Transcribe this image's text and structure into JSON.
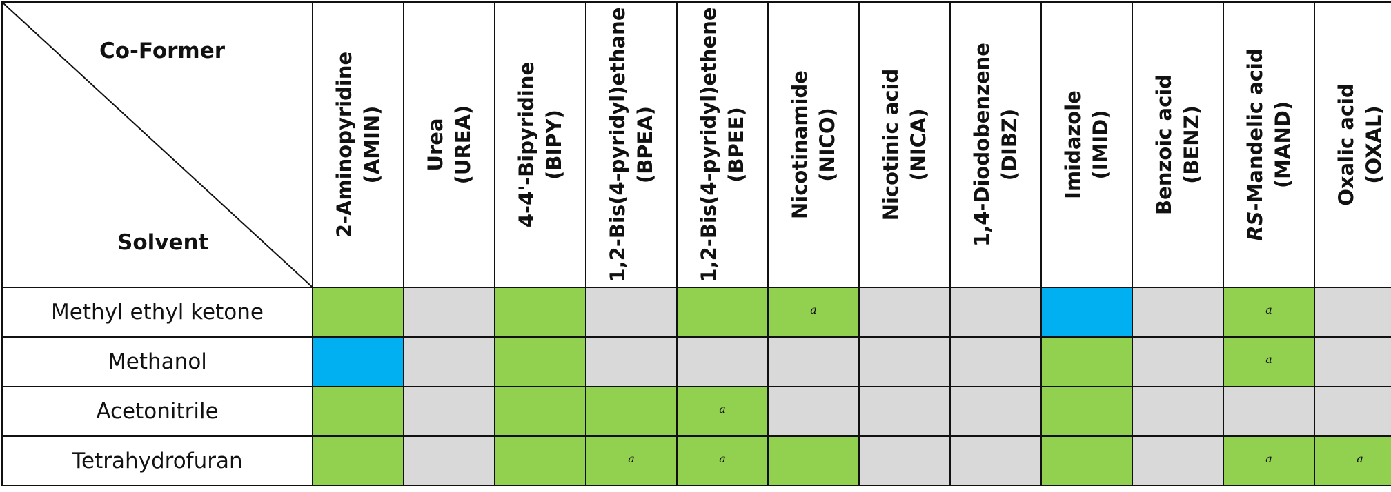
{
  "header": {
    "corner_top": "Co-Former",
    "corner_bottom": "Solvent"
  },
  "columns": [
    {
      "name": "2-Aminopyridine",
      "abbr": "(AMIN)"
    },
    {
      "name": "Urea",
      "abbr": "(UREA)"
    },
    {
      "name": "4-4'-Bipyridine",
      "abbr": "(BIPY)"
    },
    {
      "name": "1,2-Bis(4-pyridyl)ethane",
      "abbr": "(BPEA)"
    },
    {
      "name": "1,2-Bis(4-pyridyl)ethene",
      "abbr": "(BPEE)"
    },
    {
      "name": "Nicotinamide",
      "abbr": "(NICO)"
    },
    {
      "name": "Nicotinic acid",
      "abbr": "(NICA)"
    },
    {
      "name": "1,4-Diodobenzene",
      "abbr": "(DIBZ)"
    },
    {
      "name": "Imidazole",
      "abbr": "(IMID)"
    },
    {
      "name": "Benzoic acid",
      "abbr": "(BENZ)"
    },
    {
      "name_italic": "RS",
      "name": "-Mandelic acid",
      "abbr": "(MAND)"
    },
    {
      "name": "Oxalic acid",
      "abbr": "(OXAL)"
    }
  ],
  "colors": {
    "green": "#92d050",
    "blue": "#00b0f0",
    "grey": "#d9d9d9"
  },
  "rows": [
    {
      "solvent": "Methyl ethyl ketone",
      "cells": [
        {
          "color": "green",
          "mark": ""
        },
        {
          "color": "grey",
          "mark": ""
        },
        {
          "color": "green",
          "mark": ""
        },
        {
          "color": "grey",
          "mark": ""
        },
        {
          "color": "green",
          "mark": ""
        },
        {
          "color": "green",
          "mark": "a"
        },
        {
          "color": "grey",
          "mark": ""
        },
        {
          "color": "grey",
          "mark": ""
        },
        {
          "color": "blue",
          "mark": ""
        },
        {
          "color": "grey",
          "mark": ""
        },
        {
          "color": "green",
          "mark": "a"
        },
        {
          "color": "grey",
          "mark": ""
        }
      ]
    },
    {
      "solvent": "Methanol",
      "cells": [
        {
          "color": "blue",
          "mark": ""
        },
        {
          "color": "grey",
          "mark": ""
        },
        {
          "color": "green",
          "mark": ""
        },
        {
          "color": "grey",
          "mark": ""
        },
        {
          "color": "grey",
          "mark": ""
        },
        {
          "color": "grey",
          "mark": ""
        },
        {
          "color": "grey",
          "mark": ""
        },
        {
          "color": "grey",
          "mark": ""
        },
        {
          "color": "green",
          "mark": ""
        },
        {
          "color": "grey",
          "mark": ""
        },
        {
          "color": "green",
          "mark": "a"
        },
        {
          "color": "grey",
          "mark": ""
        }
      ]
    },
    {
      "solvent": "Acetonitrile",
      "cells": [
        {
          "color": "green",
          "mark": ""
        },
        {
          "color": "grey",
          "mark": ""
        },
        {
          "color": "green",
          "mark": ""
        },
        {
          "color": "green",
          "mark": ""
        },
        {
          "color": "green",
          "mark": "a"
        },
        {
          "color": "grey",
          "mark": ""
        },
        {
          "color": "grey",
          "mark": ""
        },
        {
          "color": "grey",
          "mark": ""
        },
        {
          "color": "green",
          "mark": ""
        },
        {
          "color": "grey",
          "mark": ""
        },
        {
          "color": "grey",
          "mark": ""
        },
        {
          "color": "grey",
          "mark": ""
        }
      ]
    },
    {
      "solvent": "Tetrahydrofuran",
      "cells": [
        {
          "color": "green",
          "mark": ""
        },
        {
          "color": "grey",
          "mark": ""
        },
        {
          "color": "green",
          "mark": ""
        },
        {
          "color": "green",
          "mark": "a"
        },
        {
          "color": "green",
          "mark": "a"
        },
        {
          "color": "green",
          "mark": ""
        },
        {
          "color": "grey",
          "mark": ""
        },
        {
          "color": "grey",
          "mark": ""
        },
        {
          "color": "green",
          "mark": ""
        },
        {
          "color": "grey",
          "mark": ""
        },
        {
          "color": "green",
          "mark": "a"
        },
        {
          "color": "green",
          "mark": "a"
        }
      ]
    }
  ]
}
